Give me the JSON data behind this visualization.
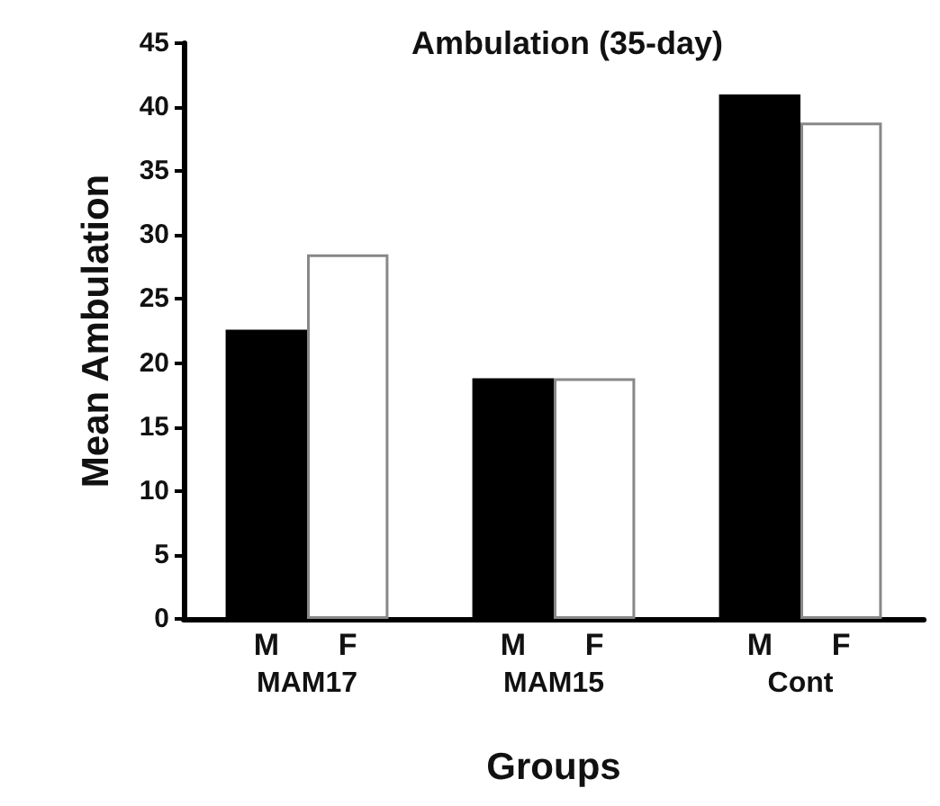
{
  "chart_data": {
    "type": "bar",
    "title": "Ambulation (35-day)",
    "xlabel": "Groups",
    "ylabel": "Mean Ambulation",
    "categories": [
      "MAM17",
      "MAM15",
      "Cont"
    ],
    "series": [
      {
        "name": "M",
        "color": "#000000",
        "values": [
          22.6,
          18.8,
          41.0
        ]
      },
      {
        "name": "F",
        "color": "#ffffff",
        "values": [
          28.5,
          18.8,
          38.8
        ]
      }
    ],
    "ylim": [
      0,
      45
    ],
    "yticks": [
      0,
      5,
      10,
      15,
      20,
      25,
      30,
      35,
      40,
      45
    ],
    "grid": false,
    "legend": false
  }
}
